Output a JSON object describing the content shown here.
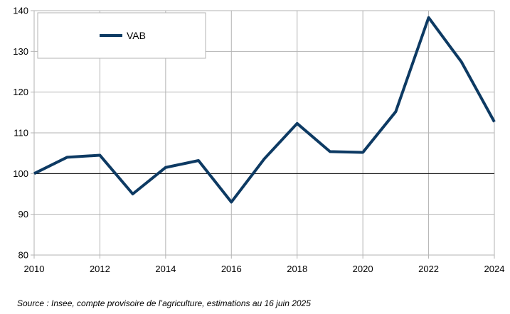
{
  "chart_data": {
    "type": "line",
    "x": [
      2010,
      2011,
      2012,
      2013,
      2014,
      2015,
      2016,
      2017,
      2018,
      2019,
      2020,
      2021,
      2022,
      2023,
      2024
    ],
    "series": [
      {
        "name": "VAB",
        "values": [
          100,
          104,
          104.5,
          95,
          101.5,
          103.2,
          93,
          103.6,
          112.3,
          105.4,
          105.2,
          115.2,
          138.3,
          127.4,
          112.7
        ],
        "color": "#0d3a63"
      }
    ],
    "xticks": [
      "2010",
      "2012",
      "2014",
      "2016",
      "2018",
      "2020",
      "2022",
      "2024"
    ],
    "yticks": [
      "80",
      "90",
      "100",
      "110",
      "120",
      "130",
      "140"
    ],
    "xlim": [
      2010,
      2024
    ],
    "ylim": [
      80,
      140
    ],
    "reference_line": 100,
    "grid": true,
    "legend_position": "top-left"
  },
  "source_note": "Source : Insee, compte provisoire de l’agriculture, estimations au 16 juin 2025"
}
